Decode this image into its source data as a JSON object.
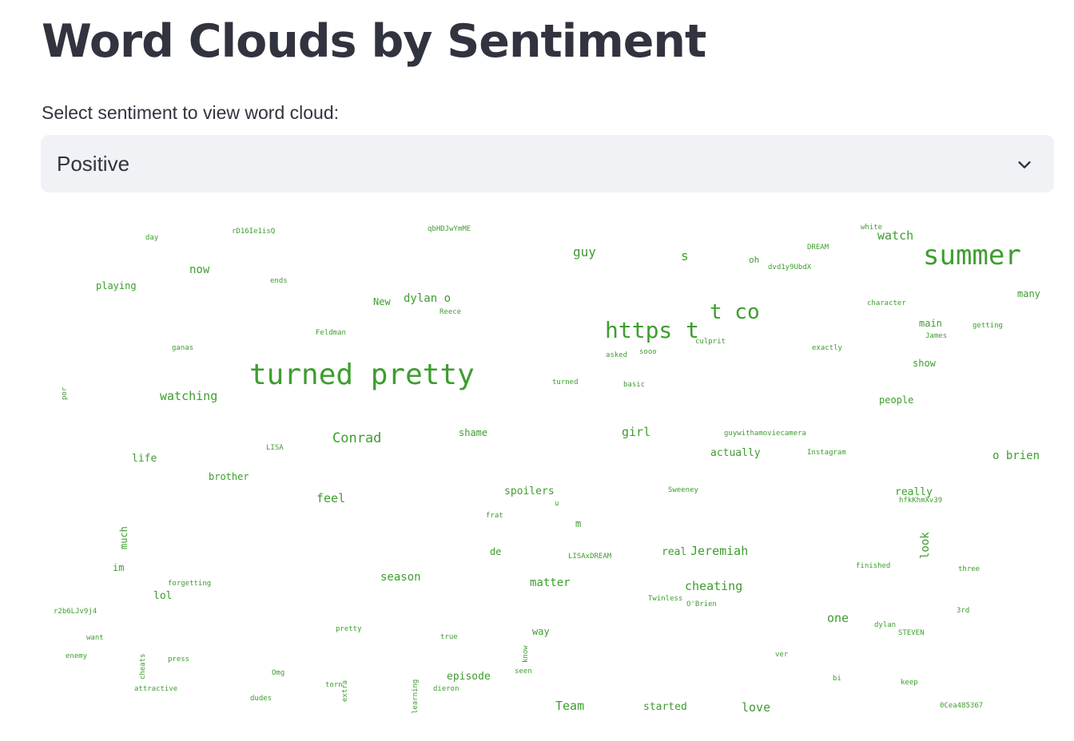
{
  "page": {
    "title": "Word Clouds by Sentiment"
  },
  "selector": {
    "label": "Select sentiment to view word cloud:",
    "value": "Positive",
    "icon": "chevron-down-icon"
  },
  "wordcloud": {
    "color": "#3e9d2f",
    "words": [
      {
        "text": "day",
        "size": 9
      },
      {
        "text": "rD16Ie1isQ",
        "size": 9
      },
      {
        "text": "qbHDJwYmME",
        "size": 9
      },
      {
        "text": "white",
        "size": 9
      },
      {
        "text": "watch",
        "size": 15
      },
      {
        "text": "DREAM",
        "size": 9
      },
      {
        "text": "guy",
        "size": 16
      },
      {
        "text": "s",
        "size": 16
      },
      {
        "text": "oh",
        "size": 11
      },
      {
        "text": "summer",
        "size": 34
      },
      {
        "text": "dvd1y9UbdX",
        "size": 9
      },
      {
        "text": "now",
        "size": 14
      },
      {
        "text": "playing",
        "size": 12
      },
      {
        "text": "ends",
        "size": 9
      },
      {
        "text": "New",
        "size": 12
      },
      {
        "text": "dylan o",
        "size": 14
      },
      {
        "text": "many",
        "size": 12
      },
      {
        "text": "Reece",
        "size": 9
      },
      {
        "text": "t co",
        "size": 26
      },
      {
        "text": "character",
        "size": 9
      },
      {
        "text": "main",
        "size": 12
      },
      {
        "text": "getting",
        "size": 9
      },
      {
        "text": "Feldman",
        "size": 9
      },
      {
        "text": "https t",
        "size": 28
      },
      {
        "text": "James",
        "size": 9
      },
      {
        "text": "culprit",
        "size": 9
      },
      {
        "text": "ganas",
        "size": 9
      },
      {
        "text": "asked",
        "size": 9
      },
      {
        "text": "sooo",
        "size": 9
      },
      {
        "text": "exactly",
        "size": 9
      },
      {
        "text": "show",
        "size": 12
      },
      {
        "text": "turned pretty",
        "size": 36
      },
      {
        "text": "turned",
        "size": 9
      },
      {
        "text": "basic",
        "size": 9
      },
      {
        "text": "por",
        "size": 9
      },
      {
        "text": "watching",
        "size": 15
      },
      {
        "text": "people",
        "size": 12
      },
      {
        "text": "shame",
        "size": 12
      },
      {
        "text": "Conrad",
        "size": 17
      },
      {
        "text": "girl",
        "size": 15
      },
      {
        "text": "guywithamoviecamera",
        "size": 9
      },
      {
        "text": "LISA",
        "size": 9
      },
      {
        "text": "actually",
        "size": 13
      },
      {
        "text": "Instagram",
        "size": 9
      },
      {
        "text": "o brien",
        "size": 14
      },
      {
        "text": "life",
        "size": 13
      },
      {
        "text": "brother",
        "size": 12
      },
      {
        "text": "spoilers",
        "size": 13
      },
      {
        "text": "Sweeney",
        "size": 9
      },
      {
        "text": "really",
        "size": 13
      },
      {
        "text": "feel",
        "size": 15
      },
      {
        "text": "u",
        "size": 9
      },
      {
        "text": "hfkKhmXv39",
        "size": 9
      },
      {
        "text": "frat",
        "size": 9
      },
      {
        "text": "m",
        "size": 12
      },
      {
        "text": "much",
        "size": 12
      },
      {
        "text": "look",
        "size": 14
      },
      {
        "text": "de",
        "size": 12
      },
      {
        "text": "LISAxDREAM",
        "size": 9
      },
      {
        "text": "real",
        "size": 13
      },
      {
        "text": "Jeremiah",
        "size": 15
      },
      {
        "text": "im",
        "size": 12
      },
      {
        "text": "finished",
        "size": 9
      },
      {
        "text": "three",
        "size": 9
      },
      {
        "text": "season",
        "size": 14
      },
      {
        "text": "forgetting",
        "size": 9
      },
      {
        "text": "matter",
        "size": 14
      },
      {
        "text": "cheating",
        "size": 15
      },
      {
        "text": "lol",
        "size": 13
      },
      {
        "text": "Twinless",
        "size": 9
      },
      {
        "text": "O'Brien",
        "size": 9
      },
      {
        "text": "r2b6LJv9j4",
        "size": 9
      },
      {
        "text": "one",
        "size": 15
      },
      {
        "text": "3rd",
        "size": 9
      },
      {
        "text": "dylan",
        "size": 9
      },
      {
        "text": "pretty",
        "size": 9
      },
      {
        "text": "way",
        "size": 12
      },
      {
        "text": "STEVEN",
        "size": 9
      },
      {
        "text": "want",
        "size": 9
      },
      {
        "text": "true",
        "size": 9
      },
      {
        "text": "know",
        "size": 9
      },
      {
        "text": "enemy",
        "size": 9
      },
      {
        "text": "cheats",
        "size": 9
      },
      {
        "text": "press",
        "size": 9
      },
      {
        "text": "ver",
        "size": 9
      },
      {
        "text": "seen",
        "size": 9
      },
      {
        "text": "Omg",
        "size": 9
      },
      {
        "text": "episode",
        "size": 13
      },
      {
        "text": "bi",
        "size": 9
      },
      {
        "text": "keep",
        "size": 9
      },
      {
        "text": "torn",
        "size": 9
      },
      {
        "text": "extra",
        "size": 9
      },
      {
        "text": "learning",
        "size": 9
      },
      {
        "text": "attractive",
        "size": 9
      },
      {
        "text": "dieron",
        "size": 9
      },
      {
        "text": "dudes",
        "size": 9
      },
      {
        "text": "Team",
        "size": 15
      },
      {
        "text": "started",
        "size": 13
      },
      {
        "text": "love",
        "size": 15
      },
      {
        "text": "0Cea485367",
        "size": 9
      }
    ]
  }
}
